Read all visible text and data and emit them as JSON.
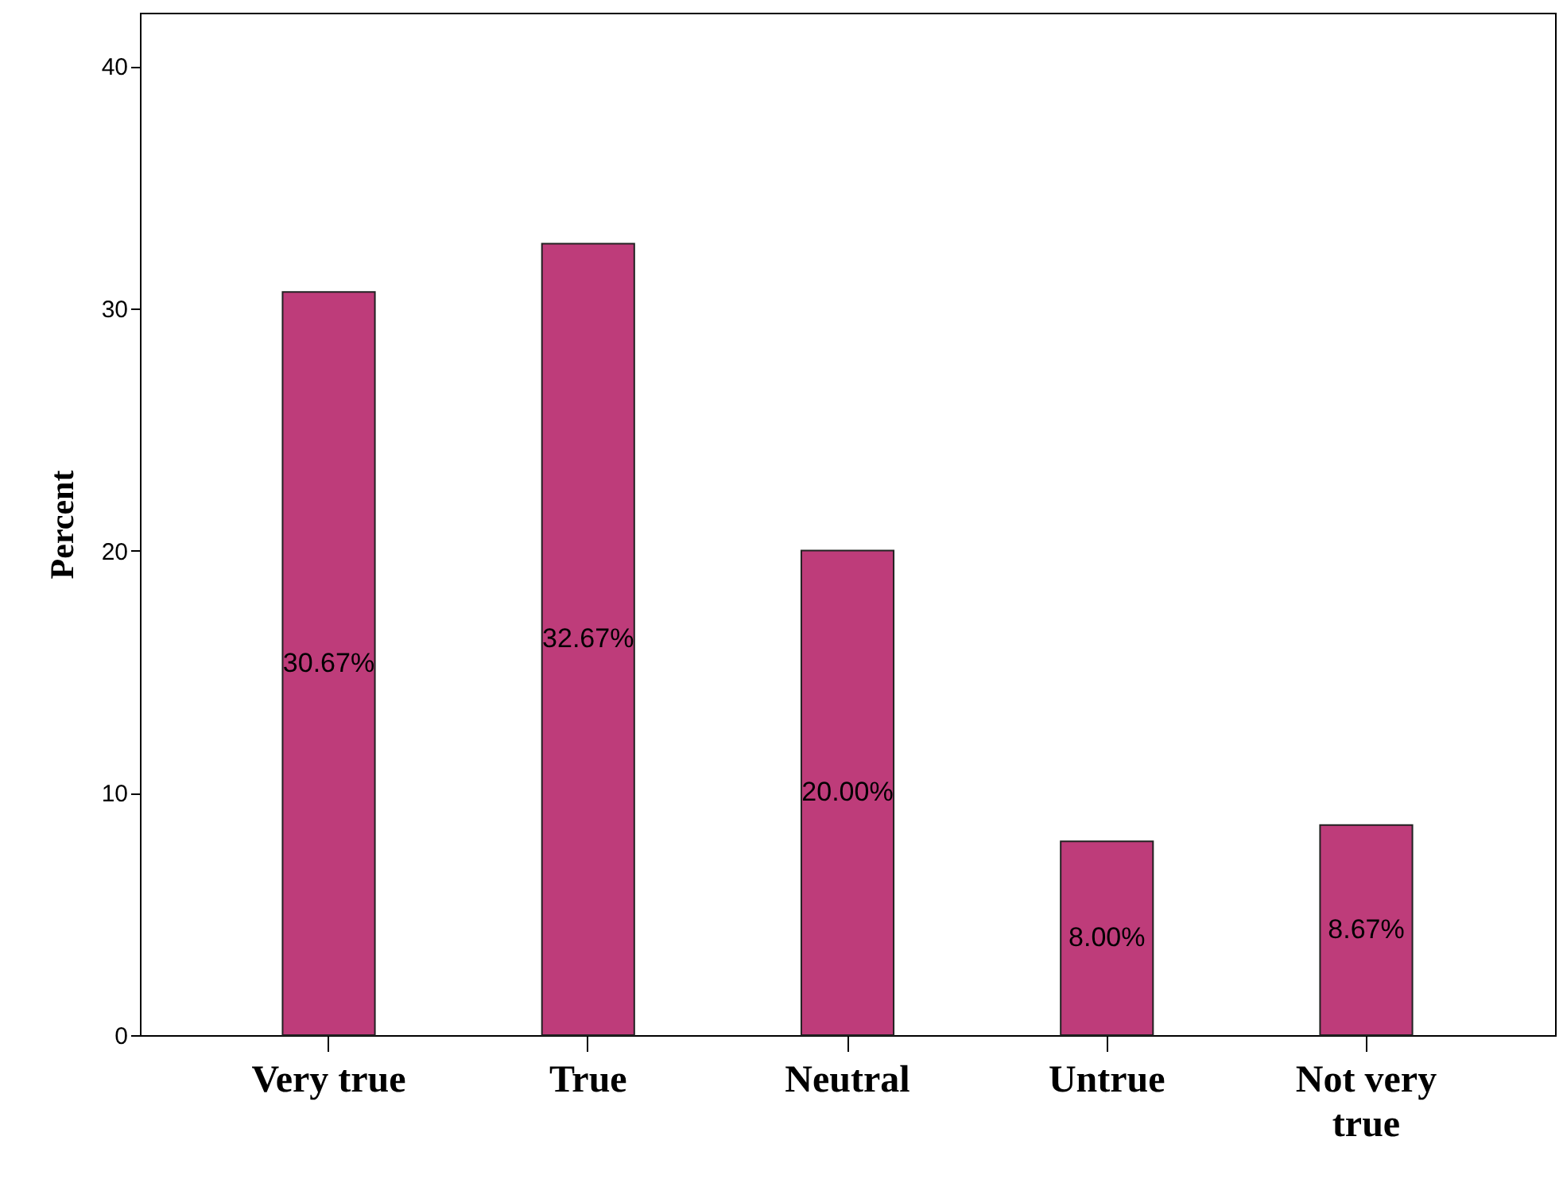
{
  "chart_data": {
    "type": "bar",
    "ylabel": "Percent",
    "categories": [
      "Very true",
      "True",
      "Neutral",
      "Untrue",
      "Not very true"
    ],
    "values": [
      30.67,
      32.67,
      20.0,
      8.0,
      8.67
    ],
    "value_labels": [
      "30.67%",
      "32.67%",
      "20.00%",
      "8.00%",
      "8.67%"
    ],
    "color": "#be3c7a",
    "ylim": [
      0,
      42.2
    ],
    "yticks": [
      0,
      10,
      20,
      30,
      40
    ],
    "grid": false
  }
}
